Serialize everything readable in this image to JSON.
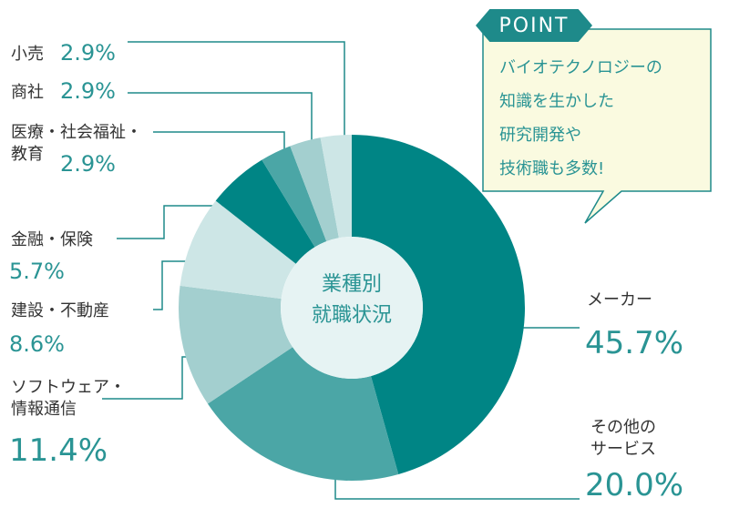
{
  "colors": {
    "teal_dark": "#008585",
    "teal_mid": "#4ba6a6",
    "teal_light": "#a3cfcf",
    "teal_pale": "#cde6e6",
    "center_fill": "#e6f3f3",
    "callout_fill": "#fafae0",
    "callout_border": "#1e8a8a",
    "line": "#1e8a8a"
  },
  "point": {
    "tag": "POINT",
    "text": "バイオテクノロジーの\n知識を生かした\n研究開発や\n技術職も多数!"
  },
  "center_label": {
    "line1": "業種別",
    "line2": "就職状況"
  },
  "chart_data": {
    "type": "pie",
    "style": "donut",
    "slices": [
      {
        "label": "メーカー",
        "pct_label": "45.7%",
        "value": 45.7,
        "color": "#008585"
      },
      {
        "label": "その他の\nサービス",
        "pct_label": "20.0%",
        "value": 20.0,
        "color": "#4ba6a6"
      },
      {
        "label": "ソフトウェア・\n情報通信",
        "pct_label": "11.4%",
        "value": 11.4,
        "color": "#a3cfcf"
      },
      {
        "label": "建設・不動産",
        "pct_label": "8.6%",
        "value": 8.6,
        "color": "#cde6e6"
      },
      {
        "label": "金融・保険",
        "pct_label": "5.7%",
        "value": 5.7,
        "color": "#008585"
      },
      {
        "label": "医療・社会福祉・\n教育",
        "pct_label": "2.9%",
        "value": 2.9,
        "color": "#4ba6a6"
      },
      {
        "label": "商社",
        "pct_label": "2.9%",
        "value": 2.9,
        "color": "#a3cfcf"
      },
      {
        "label": "小売",
        "pct_label": "2.9%",
        "value": 2.9,
        "color": "#cde6e6"
      }
    ]
  }
}
